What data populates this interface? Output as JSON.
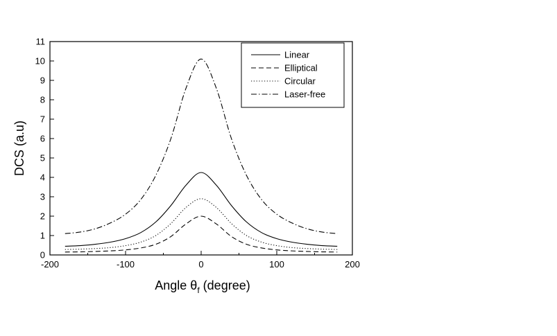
{
  "chart_data": {
    "type": "line",
    "xlabel": "Angle θf (degree)",
    "xlabel_parts": {
      "main": "Angle θ",
      "sub": "f",
      "tail": " (degree)"
    },
    "ylabel": "DCS (a.u)",
    "xlim": [
      -200,
      200
    ],
    "ylim": [
      0,
      11
    ],
    "xticks": [
      -200,
      -100,
      0,
      100,
      200
    ],
    "xtick_labels": [
      "-200",
      "-100",
      "0",
      "100",
      "200"
    ],
    "yticks": [
      0,
      1,
      2,
      3,
      4,
      5,
      6,
      7,
      8,
      9,
      10,
      11
    ],
    "ytick_labels": [
      "0",
      "1",
      "2",
      "3",
      "4",
      "5",
      "6",
      "7",
      "8",
      "9",
      "10",
      "11"
    ],
    "grid": false,
    "legend_position": "top-right",
    "x": [
      -180,
      -160,
      -140,
      -120,
      -100,
      -80,
      -60,
      -40,
      -20,
      0,
      20,
      40,
      60,
      80,
      100,
      120,
      140,
      160,
      180
    ],
    "series": [
      {
        "name": "Linear",
        "dash": "solid",
        "color": "#000000",
        "values": [
          0.45,
          0.48,
          0.55,
          0.66,
          0.84,
          1.15,
          1.7,
          2.55,
          3.6,
          4.25,
          3.6,
          2.55,
          1.7,
          1.15,
          0.84,
          0.66,
          0.55,
          0.48,
          0.45
        ]
      },
      {
        "name": "Elliptical",
        "dash": "dashed",
        "color": "#000000",
        "values": [
          0.15,
          0.16,
          0.18,
          0.21,
          0.26,
          0.36,
          0.55,
          0.95,
          1.6,
          2.0,
          1.6,
          0.95,
          0.55,
          0.36,
          0.26,
          0.21,
          0.18,
          0.16,
          0.15
        ]
      },
      {
        "name": "Circular",
        "dash": "dotted",
        "color": "#000000",
        "values": [
          0.28,
          0.3,
          0.33,
          0.38,
          0.48,
          0.66,
          1.0,
          1.62,
          2.45,
          2.9,
          2.45,
          1.62,
          1.0,
          0.66,
          0.48,
          0.38,
          0.33,
          0.3,
          0.28
        ]
      },
      {
        "name": "Laser-free",
        "dash": "dashdot",
        "color": "#000000",
        "values": [
          1.1,
          1.18,
          1.35,
          1.65,
          2.1,
          2.85,
          4.1,
          6.0,
          8.6,
          10.1,
          8.6,
          6.0,
          4.1,
          2.85,
          2.1,
          1.65,
          1.35,
          1.18,
          1.1
        ]
      }
    ]
  }
}
